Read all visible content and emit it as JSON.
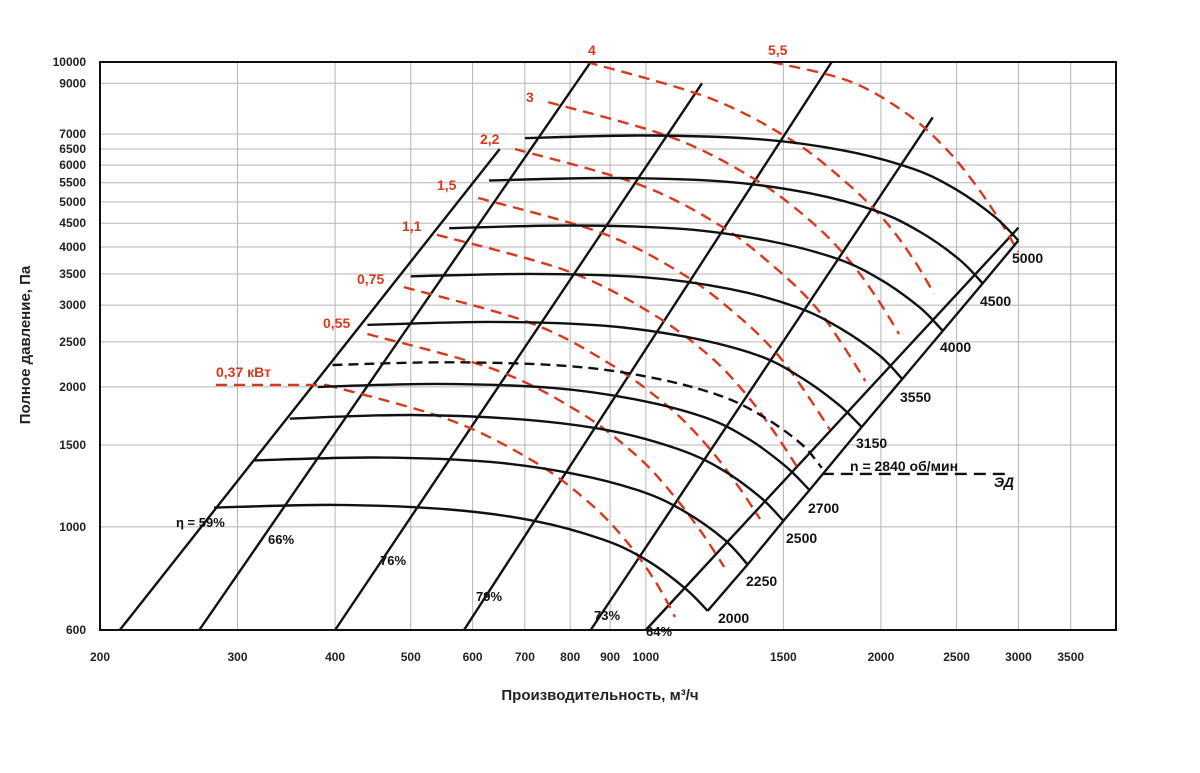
{
  "chart_data": {
    "type": "line",
    "title": "",
    "xlabel": "Производительность, м³/ч",
    "ylabel": "Полное давление, Па",
    "xscale": "log",
    "yscale": "log",
    "xlim": [
      200,
      4000
    ],
    "ylim": [
      600,
      10000
    ],
    "grid": true,
    "x_ticks": [
      "200",
      "300",
      "400",
      "500",
      "600",
      "700",
      "800",
      "900",
      "1000",
      "1500",
      "2000",
      "2500",
      "3000",
      "3500"
    ],
    "x_tick_values": [
      200,
      300,
      400,
      500,
      600,
      700,
      800,
      900,
      1000,
      1500,
      2000,
      2500,
      3000,
      3500
    ],
    "y_ticks": [
      "600",
      "1000",
      "1500",
      "2000",
      "2500",
      "3000",
      "3500",
      "4000",
      "4500",
      "5000",
      "5500",
      "6000",
      "6500",
      "7000",
      "9000",
      "10000"
    ],
    "y_tick_values": [
      600,
      1000,
      1500,
      2000,
      2500,
      3000,
      3500,
      4000,
      4500,
      5000,
      5500,
      6000,
      6500,
      7000,
      9000,
      10000
    ],
    "colors": {
      "speed_curve": "#111111",
      "power_curve": "#d9381e",
      "grid": "#b5b5b5"
    },
    "speed_curves": [
      {
        "name": "2000",
        "points": [
          [
            280,
            1100
          ],
          [
            400,
            1115
          ],
          [
            560,
            1090
          ],
          [
            720,
            1030
          ],
          [
            880,
            940
          ],
          [
            1000,
            850
          ],
          [
            1120,
            740
          ],
          [
            1200,
            660
          ]
        ]
      },
      {
        "name": "2250",
        "points": [
          [
            315,
            1390
          ],
          [
            450,
            1410
          ],
          [
            630,
            1380
          ],
          [
            810,
            1300
          ],
          [
            990,
            1190
          ],
          [
            1120,
            1080
          ],
          [
            1260,
            940
          ],
          [
            1350,
            830
          ]
        ]
      },
      {
        "name": "2500",
        "points": [
          [
            350,
            1710
          ],
          [
            500,
            1740
          ],
          [
            700,
            1700
          ],
          [
            900,
            1610
          ],
          [
            1100,
            1470
          ],
          [
            1250,
            1330
          ],
          [
            1400,
            1160
          ],
          [
            1500,
            1030
          ]
        ]
      },
      {
        "name": "2700",
        "points": [
          [
            380,
            2000
          ],
          [
            540,
            2030
          ],
          [
            760,
            1990
          ],
          [
            970,
            1880
          ],
          [
            1190,
            1720
          ],
          [
            1350,
            1550
          ],
          [
            1510,
            1350
          ],
          [
            1620,
            1200
          ]
        ]
      },
      {
        "name": "3150",
        "points": [
          [
            440,
            2720
          ],
          [
            630,
            2760
          ],
          [
            880,
            2710
          ],
          [
            1130,
            2560
          ],
          [
            1390,
            2340
          ],
          [
            1570,
            2110
          ],
          [
            1760,
            1840
          ],
          [
            1890,
            1640
          ]
        ]
      },
      {
        "name": "3550",
        "points": [
          [
            500,
            3460
          ],
          [
            710,
            3500
          ],
          [
            1000,
            3440
          ],
          [
            1280,
            3250
          ],
          [
            1560,
            2970
          ],
          [
            1770,
            2680
          ],
          [
            1990,
            2340
          ],
          [
            2130,
            2080
          ]
        ]
      },
      {
        "name": "4000",
        "points": [
          [
            560,
            4390
          ],
          [
            800,
            4450
          ],
          [
            1120,
            4370
          ],
          [
            1440,
            4120
          ],
          [
            1760,
            3770
          ],
          [
            2000,
            3400
          ],
          [
            2240,
            2970
          ],
          [
            2400,
            2640
          ]
        ]
      },
      {
        "name": "4500",
        "points": [
          [
            630,
            5560
          ],
          [
            900,
            5630
          ],
          [
            1260,
            5530
          ],
          [
            1620,
            5220
          ],
          [
            1980,
            4770
          ],
          [
            2250,
            4300
          ],
          [
            2520,
            3760
          ],
          [
            2700,
            3340
          ]
        ]
      },
      {
        "name": "5000",
        "points": [
          [
            700,
            6860
          ],
          [
            1000,
            6950
          ],
          [
            1400,
            6820
          ],
          [
            1800,
            6440
          ],
          [
            2200,
            5890
          ],
          [
            2500,
            5310
          ],
          [
            2800,
            4640
          ],
          [
            3000,
            4130
          ]
        ]
      }
    ],
    "motor_curve": {
      "name": "n = 2840 об/мин",
      "points": [
        [
          397,
          2230
        ],
        [
          560,
          2260
        ],
        [
          790,
          2220
        ],
        [
          1010,
          2100
        ],
        [
          1240,
          1920
        ],
        [
          1410,
          1730
        ],
        [
          1580,
          1510
        ],
        [
          1680,
          1340
        ]
      ]
    },
    "motor_label": "ЭД",
    "motor_line": [
      [
        1680,
        1300
      ],
      [
        2900,
        1300
      ]
    ],
    "power_curves": [
      {
        "name": "0,37 кВт",
        "points": [
          [
            390,
            2020
          ],
          [
            560,
            1700
          ],
          [
            720,
            1380
          ],
          [
            850,
            1120
          ],
          [
            950,
            920
          ],
          [
            1030,
            760
          ],
          [
            1090,
            640
          ]
        ]
      },
      {
        "name": "0,55",
        "points": [
          [
            440,
            2600
          ],
          [
            640,
            2180
          ],
          [
            820,
            1770
          ],
          [
            970,
            1430
          ],
          [
            1080,
            1180
          ],
          [
            1180,
            970
          ],
          [
            1260,
            820
          ]
        ]
      },
      {
        "name": "0,75",
        "points": [
          [
            490,
            3280
          ],
          [
            710,
            2750
          ],
          [
            900,
            2240
          ],
          [
            1070,
            1810
          ],
          [
            1200,
            1490
          ],
          [
            1310,
            1230
          ],
          [
            1400,
            1040
          ]
        ]
      },
      {
        "name": "1,1",
        "points": [
          [
            540,
            4250
          ],
          [
            790,
            3560
          ],
          [
            1010,
            2900
          ],
          [
            1200,
            2350
          ],
          [
            1340,
            1940
          ],
          [
            1460,
            1600
          ],
          [
            1560,
            1350
          ]
        ]
      },
      {
        "name": "1,5",
        "points": [
          [
            610,
            5100
          ],
          [
            880,
            4280
          ],
          [
            1120,
            3480
          ],
          [
            1320,
            2820
          ],
          [
            1480,
            2330
          ],
          [
            1610,
            1920
          ],
          [
            1720,
            1620
          ]
        ]
      },
      {
        "name": "2,2",
        "points": [
          [
            680,
            6500
          ],
          [
            980,
            5450
          ],
          [
            1250,
            4430
          ],
          [
            1470,
            3590
          ],
          [
            1650,
            2970
          ],
          [
            1790,
            2450
          ],
          [
            1910,
            2060
          ]
        ]
      },
      {
        "name": "3",
        "points": [
          [
            750,
            8200
          ],
          [
            1080,
            6880
          ],
          [
            1380,
            5590
          ],
          [
            1630,
            4530
          ],
          [
            1820,
            3750
          ],
          [
            1980,
            3090
          ],
          [
            2110,
            2600
          ]
        ]
      },
      {
        "name": "4",
        "points": [
          [
            840,
            10000
          ],
          [
            1200,
            8390
          ],
          [
            1530,
            6820
          ],
          [
            1800,
            5530
          ],
          [
            2020,
            4570
          ],
          [
            2200,
            3770
          ],
          [
            2340,
            3170
          ]
        ]
      },
      {
        "name": "5,5",
        "points": [
          [
            1450,
            10000
          ],
          [
            1820,
            9100
          ],
          [
            2150,
            7780
          ],
          [
            2420,
            6520
          ],
          [
            2640,
            5460
          ],
          [
            2840,
            4560
          ],
          [
            3000,
            3900
          ]
        ]
      }
    ],
    "efficiency_lines": [
      {
        "name": "η = 59%",
        "points": [
          [
            212,
            600
          ],
          [
            650,
            6500
          ]
        ]
      },
      {
        "name": "66%",
        "points": [
          [
            268,
            600
          ],
          [
            850,
            10000
          ]
        ]
      },
      {
        "name": "76%",
        "points": [
          [
            400,
            600
          ],
          [
            1180,
            9000
          ]
        ]
      },
      {
        "name": "79%",
        "points": [
          [
            585,
            600
          ],
          [
            1730,
            10000
          ]
        ]
      },
      {
        "name": "73%",
        "points": [
          [
            850,
            600
          ],
          [
            2330,
            7600
          ]
        ]
      },
      {
        "name": "64%",
        "points": [
          [
            1000,
            600
          ],
          [
            3000,
            4400
          ]
        ]
      }
    ]
  }
}
